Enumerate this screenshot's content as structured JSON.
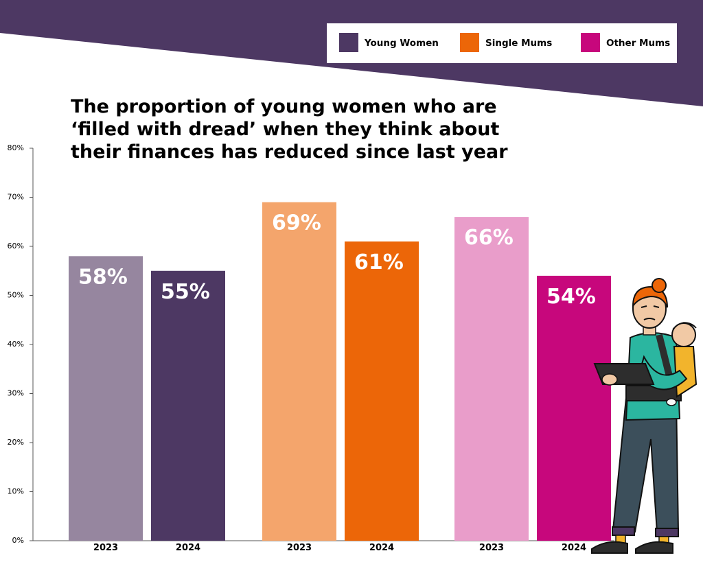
{
  "chart_data": {
    "type": "bar",
    "title_lines": [
      "The proportion of young women who are",
      "‘filled with dread’ when they think about",
      "their finances has reduced since last year"
    ],
    "ylim": [
      0,
      80
    ],
    "yticks": [
      0,
      10,
      20,
      30,
      40,
      50,
      60,
      70,
      80
    ],
    "ytick_suffix": "%",
    "grid": false,
    "legend_position": "top-right",
    "groups": [
      {
        "name": "Young Women",
        "legend_color": "#4d3863",
        "bars": [
          {
            "year": "2023",
            "value": 58,
            "label": "58%",
            "color": "#96869f"
          },
          {
            "year": "2024",
            "value": 55,
            "label": "55%",
            "color": "#4d3863"
          }
        ]
      },
      {
        "name": "Single Mums",
        "legend_color": "#ec6608",
        "bars": [
          {
            "year": "2023",
            "value": 69,
            "label": "69%",
            "color": "#f4a56c"
          },
          {
            "year": "2024",
            "value": 61,
            "label": "61%",
            "color": "#ec6608"
          }
        ]
      },
      {
        "name": "Other Mums",
        "legend_color": "#c7077c",
        "bars": [
          {
            "year": "2023",
            "value": 66,
            "label": "66%",
            "color": "#e99dca"
          },
          {
            "year": "2024",
            "value": 54,
            "label": "54%",
            "color": "#c7077c"
          }
        ]
      }
    ]
  },
  "colors": {
    "banner": "#4d3863",
    "axis": "#555555"
  },
  "decorations": {
    "illustration": "woman-carrying-baby-holding-tablet-illustration"
  }
}
